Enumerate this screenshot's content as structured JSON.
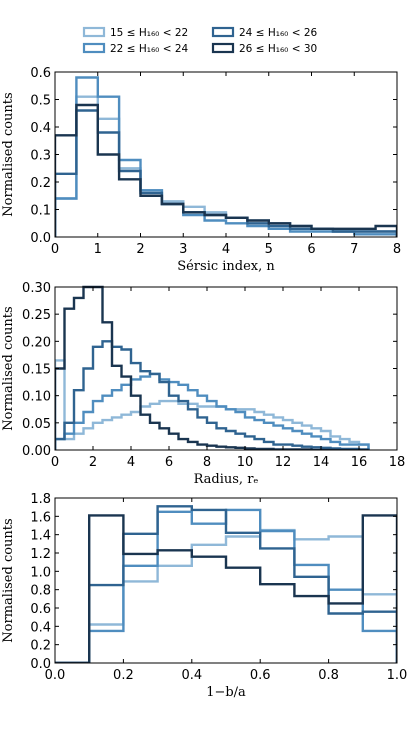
{
  "legend": {
    "entries": [
      "15 ≤ H₁₆₀ < 22",
      "22 ≤ H₁₆₀ < 24",
      "24 ≤ H₁₆₀ < 26",
      "26 ≤ H₁₆₀ < 30"
    ],
    "colors": [
      "#8fb8d8",
      "#4f8dbf",
      "#2f6390",
      "#1a3550"
    ]
  },
  "chart_data": [
    {
      "type": "histogram-step",
      "xlabel": "Sérsic index, n",
      "ylabel": "Normalised counts",
      "xlim": [
        0,
        8
      ],
      "ylim": [
        0,
        0.6
      ],
      "xticks": [
        "0",
        "1",
        "2",
        "3",
        "4",
        "5",
        "6",
        "7",
        "8"
      ],
      "yticks": [
        "0.0",
        "0.1",
        "0.2",
        "0.3",
        "0.4",
        "0.5",
        "0.6"
      ],
      "xtick_values": [
        0,
        1,
        2,
        3,
        4,
        5,
        6,
        7,
        8
      ],
      "ytick_values": [
        0,
        0.1,
        0.2,
        0.3,
        0.4,
        0.5,
        0.6
      ],
      "bin_edges": [
        0,
        0.5,
        1,
        1.5,
        2,
        2.5,
        3,
        3.5,
        4,
        4.5,
        5,
        5.5,
        6,
        6.5,
        7,
        7.5,
        8
      ],
      "series": [
        {
          "name": "15 ≤ H₁₆₀ < 22",
          "values": [
            0.14,
            0.51,
            0.43,
            0.25,
            0.17,
            0.13,
            0.11,
            0.09,
            0.07,
            0.06,
            0.05,
            0.04,
            0.03,
            0.02,
            0.02,
            0.02
          ]
        },
        {
          "name": "22 ≤ H₁₆₀ < 24",
          "values": [
            0.14,
            0.58,
            0.51,
            0.28,
            0.17,
            0.12,
            0.08,
            0.06,
            0.05,
            0.04,
            0.03,
            0.02,
            0.02,
            0.02,
            0.01,
            0.01
          ]
        },
        {
          "name": "24 ≤ H₁₆₀ < 26",
          "values": [
            0.23,
            0.46,
            0.38,
            0.24,
            0.16,
            0.12,
            0.09,
            0.08,
            0.07,
            0.05,
            0.04,
            0.03,
            0.03,
            0.02,
            0.02,
            0.02
          ]
        },
        {
          "name": "26 ≤ H₁₆₀ < 30",
          "values": [
            0.37,
            0.48,
            0.3,
            0.21,
            0.15,
            0.12,
            0.09,
            0.08,
            0.07,
            0.06,
            0.05,
            0.04,
            0.03,
            0.03,
            0.03,
            0.04
          ]
        }
      ]
    },
    {
      "type": "histogram-step",
      "xlabel": "Radius, rₑ",
      "ylabel": "Normalised counts",
      "xlim": [
        0,
        18
      ],
      "ylim": [
        0,
        0.3
      ],
      "xticks": [
        "0",
        "2",
        "4",
        "6",
        "8",
        "10",
        "12",
        "14",
        "16",
        "18"
      ],
      "yticks": [
        "0.00",
        "0.05",
        "0.10",
        "0.15",
        "0.20",
        "0.25",
        "0.30"
      ],
      "xtick_values": [
        0,
        2,
        4,
        6,
        8,
        10,
        12,
        14,
        16,
        18
      ],
      "ytick_values": [
        0,
        0.05,
        0.1,
        0.15,
        0.2,
        0.25,
        0.3
      ],
      "bin_edges": [
        0,
        0.5,
        1,
        1.5,
        2,
        2.5,
        3,
        3.5,
        4,
        4.5,
        5,
        5.5,
        6,
        6.5,
        7,
        7.5,
        8,
        8.5,
        9,
        9.5,
        10,
        10.5,
        11,
        11.5,
        12,
        12.5,
        13,
        13.5,
        14,
        14.5,
        15,
        15.5,
        16,
        16.5
      ],
      "series": [
        {
          "name": "15 ≤ H₁₆₀ < 22",
          "values": [
            0.165,
            0.02,
            0.03,
            0.04,
            0.05,
            0.055,
            0.06,
            0.065,
            0.07,
            0.08,
            0.085,
            0.09,
            0.09,
            0.085,
            0.085,
            0.08,
            0.08,
            0.08,
            0.075,
            0.075,
            0.075,
            0.07,
            0.065,
            0.06,
            0.055,
            0.05,
            0.045,
            0.04,
            0.035,
            0.025,
            0.02,
            0.015,
            0.01
          ]
        },
        {
          "name": "22 ≤ H₁₆₀ < 24",
          "values": [
            0.02,
            0.03,
            0.05,
            0.07,
            0.09,
            0.1,
            0.11,
            0.12,
            0.13,
            0.135,
            0.14,
            0.13,
            0.125,
            0.12,
            0.11,
            0.1,
            0.09,
            0.08,
            0.075,
            0.07,
            0.06,
            0.055,
            0.05,
            0.045,
            0.04,
            0.035,
            0.03,
            0.025,
            0.02,
            0.015,
            0.01,
            0.01,
            0.01
          ]
        },
        {
          "name": "24 ≤ H₁₆₀ < 26",
          "values": [
            0.02,
            0.05,
            0.11,
            0.15,
            0.19,
            0.2,
            0.19,
            0.185,
            0.16,
            0.145,
            0.14,
            0.125,
            0.1,
            0.09,
            0.075,
            0.06,
            0.05,
            0.04,
            0.035,
            0.03,
            0.025,
            0.02,
            0.015,
            0.01,
            0.01,
            0.008,
            0.006,
            0.005,
            0.004,
            0.003,
            0.002,
            0.002,
            0.001
          ]
        },
        {
          "name": "26 ≤ H₁₆₀ < 30",
          "values": [
            0.15,
            0.26,
            0.28,
            0.3,
            0.3,
            0.235,
            0.155,
            0.135,
            0.1,
            0.065,
            0.05,
            0.04,
            0.03,
            0.02,
            0.015,
            0.01,
            0.008,
            0.006,
            0.005,
            0.004,
            0.003,
            0.002,
            0.002,
            0.001,
            0.001,
            0.001,
            0.001,
            0,
            0,
            0,
            0,
            0,
            0
          ]
        }
      ]
    },
    {
      "type": "histogram-step",
      "xlabel": "1−b/a",
      "ylabel": "Normalised counts",
      "xlim": [
        0,
        1
      ],
      "ylim": [
        0,
        1.8
      ],
      "xticks": [
        "0.0",
        "0.2",
        "0.4",
        "0.6",
        "0.8",
        "1.0"
      ],
      "yticks": [
        "0.0",
        "0.2",
        "0.4",
        "0.6",
        "0.8",
        "1.0",
        "1.2",
        "1.4",
        "1.6",
        "1.8"
      ],
      "xtick_values": [
        0,
        0.2,
        0.4,
        0.6,
        0.8,
        1.0
      ],
      "ytick_values": [
        0,
        0.2,
        0.4,
        0.6,
        0.8,
        1.0,
        1.2,
        1.4,
        1.6,
        1.8
      ],
      "bin_edges": [
        0,
        0.1,
        0.2,
        0.3,
        0.4,
        0.5,
        0.6,
        0.7,
        0.8,
        0.9,
        1.0
      ],
      "series": [
        {
          "name": "15 ≤ H₁₆₀ < 22",
          "values": [
            0,
            0.42,
            0.89,
            1.06,
            1.29,
            1.38,
            1.45,
            1.35,
            1.38,
            0.75
          ]
        },
        {
          "name": "22 ≤ H₁₆₀ < 24",
          "values": [
            0,
            0.35,
            1.06,
            1.65,
            1.52,
            1.67,
            1.44,
            1.07,
            0.8,
            0.35
          ]
        },
        {
          "name": "24 ≤ H₁₆₀ < 26",
          "values": [
            0,
            0.85,
            1.41,
            1.71,
            1.67,
            1.42,
            1.25,
            0.94,
            0.54,
            0.56
          ]
        },
        {
          "name": "26 ≤ H₁₆₀ < 30",
          "values": [
            0,
            1.61,
            1.19,
            1.23,
            1.16,
            1.04,
            0.86,
            0.73,
            0.65,
            1.61
          ]
        }
      ]
    }
  ]
}
